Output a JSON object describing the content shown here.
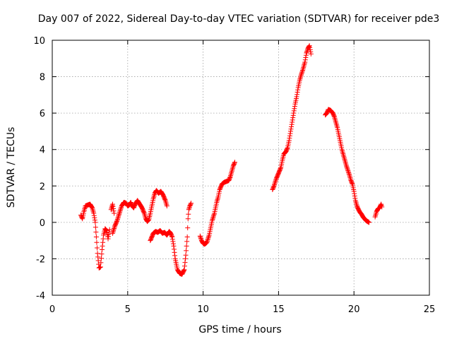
{
  "chart_data": {
    "type": "scatter",
    "title": "Day 007 of 2022, Sidereal Day-to-day VTEC variation (SDTVAR) for receiver pde3",
    "xlabel": "GPS time / hours",
    "ylabel": "SDTVAR / TECUs",
    "xlim": [
      0,
      25
    ],
    "ylim": [
      -4,
      10
    ],
    "x_ticks": [
      0,
      5,
      10,
      15,
      20,
      25
    ],
    "y_ticks": [
      -4,
      -2,
      0,
      2,
      4,
      6,
      8,
      10
    ],
    "grid": true,
    "legend": "none",
    "marker": "plus",
    "color": "#ff0000",
    "series": [
      {
        "segments": [
          [
            [
              1.9,
              0.4
            ],
            [
              2.0,
              0.2
            ],
            [
              2.1,
              0.6
            ],
            [
              2.2,
              0.9
            ],
            [
              2.35,
              0.95
            ],
            [
              2.5,
              1.0
            ],
            [
              2.65,
              0.8
            ],
            [
              2.75,
              0.5
            ],
            [
              2.85,
              0.0
            ],
            [
              2.92,
              -0.8
            ],
            [
              3.0,
              -1.7
            ],
            [
              3.1,
              -2.5
            ],
            [
              3.2,
              -2.45
            ],
            [
              3.3,
              -1.5
            ],
            [
              3.4,
              -0.7
            ],
            [
              3.5,
              -0.35
            ],
            [
              3.6,
              -0.45
            ],
            [
              3.7,
              -0.9
            ],
            [
              3.8,
              -0.4
            ]
          ],
          [
            [
              3.9,
              0.7
            ],
            [
              4.0,
              1.0
            ],
            [
              4.1,
              0.5
            ]
          ],
          [
            [
              4.0,
              -0.6
            ],
            [
              4.15,
              -0.2
            ],
            [
              4.3,
              0.1
            ],
            [
              4.45,
              0.5
            ],
            [
              4.6,
              0.9
            ],
            [
              4.75,
              1.1
            ],
            [
              4.9,
              1.05
            ],
            [
              5.0,
              0.9
            ],
            [
              5.1,
              0.95
            ],
            [
              5.2,
              1.1
            ],
            [
              5.3,
              0.9
            ],
            [
              5.4,
              0.8
            ],
            [
              5.5,
              1.0
            ],
            [
              5.65,
              1.2
            ],
            [
              5.8,
              1.0
            ],
            [
              5.95,
              0.8
            ],
            [
              6.1,
              0.5
            ],
            [
              6.2,
              0.2
            ],
            [
              6.3,
              0.05
            ],
            [
              6.4,
              0.15
            ],
            [
              6.5,
              0.5
            ],
            [
              6.6,
              0.9
            ],
            [
              6.7,
              1.3
            ],
            [
              6.8,
              1.6
            ],
            [
              6.9,
              1.75
            ],
            [
              7.05,
              1.6
            ],
            [
              7.2,
              1.7
            ],
            [
              7.35,
              1.5
            ],
            [
              7.5,
              1.2
            ],
            [
              7.6,
              0.9
            ]
          ],
          [
            [
              6.5,
              -1.0
            ],
            [
              6.6,
              -0.8
            ],
            [
              6.7,
              -0.6
            ],
            [
              6.85,
              -0.5
            ],
            [
              7.0,
              -0.55
            ],
            [
              7.15,
              -0.45
            ],
            [
              7.3,
              -0.6
            ],
            [
              7.45,
              -0.55
            ],
            [
              7.6,
              -0.7
            ],
            [
              7.75,
              -0.5
            ],
            [
              7.85,
              -0.6
            ],
            [
              7.95,
              -0.8
            ],
            [
              8.05,
              -1.3
            ],
            [
              8.15,
              -2.0
            ],
            [
              8.3,
              -2.6
            ],
            [
              8.45,
              -2.8
            ],
            [
              8.6,
              -2.85
            ],
            [
              8.75,
              -2.6
            ],
            [
              8.85,
              -1.8
            ],
            [
              8.95,
              -0.8
            ],
            [
              9.0,
              0.2
            ],
            [
              9.05,
              0.7
            ],
            [
              9.12,
              0.9
            ],
            [
              9.2,
              1.05
            ]
          ],
          [
            [
              9.8,
              -0.75
            ],
            [
              9.9,
              -1.0
            ],
            [
              10.0,
              -1.15
            ],
            [
              10.1,
              -1.2
            ],
            [
              10.25,
              -1.1
            ],
            [
              10.4,
              -0.7
            ],
            [
              10.5,
              -0.3
            ],
            [
              10.6,
              0.1
            ],
            [
              10.75,
              0.5
            ],
            [
              10.9,
              1.1
            ],
            [
              11.0,
              1.4
            ],
            [
              11.1,
              1.8
            ],
            [
              11.25,
              2.1
            ],
            [
              11.4,
              2.2
            ],
            [
              11.55,
              2.25
            ],
            [
              11.7,
              2.3
            ],
            [
              11.8,
              2.5
            ],
            [
              11.9,
              2.8
            ],
            [
              12.0,
              3.1
            ],
            [
              12.1,
              3.3
            ]
          ],
          [
            [
              14.6,
              1.8
            ],
            [
              14.7,
              2.0
            ],
            [
              14.85,
              2.4
            ],
            [
              15.0,
              2.7
            ],
            [
              15.15,
              3.0
            ],
            [
              15.25,
              3.4
            ],
            [
              15.35,
              3.75
            ],
            [
              15.5,
              3.9
            ],
            [
              15.6,
              4.1
            ],
            [
              15.7,
              4.5
            ],
            [
              15.8,
              5.0
            ],
            [
              15.9,
              5.5
            ],
            [
              16.0,
              6.0
            ],
            [
              16.1,
              6.5
            ],
            [
              16.2,
              6.9
            ],
            [
              16.3,
              7.4
            ],
            [
              16.4,
              7.8
            ],
            [
              16.5,
              8.1
            ],
            [
              16.6,
              8.35
            ],
            [
              16.75,
              8.8
            ],
            [
              16.85,
              9.3
            ],
            [
              16.95,
              9.55
            ],
            [
              17.05,
              9.7
            ],
            [
              17.15,
              9.25
            ]
          ],
          [
            [
              18.1,
              5.9
            ],
            [
              18.2,
              6.0
            ],
            [
              18.3,
              6.2
            ],
            [
              18.45,
              6.15
            ],
            [
              18.6,
              6.0
            ],
            [
              18.7,
              5.8
            ],
            [
              18.8,
              5.5
            ],
            [
              18.9,
              5.2
            ],
            [
              19.0,
              4.8
            ],
            [
              19.1,
              4.4
            ],
            [
              19.2,
              4.0
            ],
            [
              19.3,
              3.7
            ],
            [
              19.4,
              3.4
            ],
            [
              19.5,
              3.1
            ],
            [
              19.6,
              2.85
            ],
            [
              19.7,
              2.6
            ],
            [
              19.8,
              2.3
            ],
            [
              19.9,
              2.1
            ],
            [
              20.0,
              1.7
            ],
            [
              20.1,
              1.2
            ],
            [
              20.2,
              0.9
            ],
            [
              20.3,
              0.7
            ],
            [
              20.4,
              0.55
            ],
            [
              20.5,
              0.45
            ],
            [
              20.6,
              0.3
            ],
            [
              20.7,
              0.2
            ],
            [
              20.8,
              0.1
            ],
            [
              20.9,
              0.05
            ],
            [
              21.0,
              0.0
            ]
          ],
          [
            [
              21.4,
              0.3
            ],
            [
              21.5,
              0.6
            ],
            [
              21.6,
              0.75
            ],
            [
              21.7,
              0.8
            ],
            [
              21.8,
              1.0
            ],
            [
              21.85,
              0.85
            ]
          ]
        ]
      }
    ]
  }
}
